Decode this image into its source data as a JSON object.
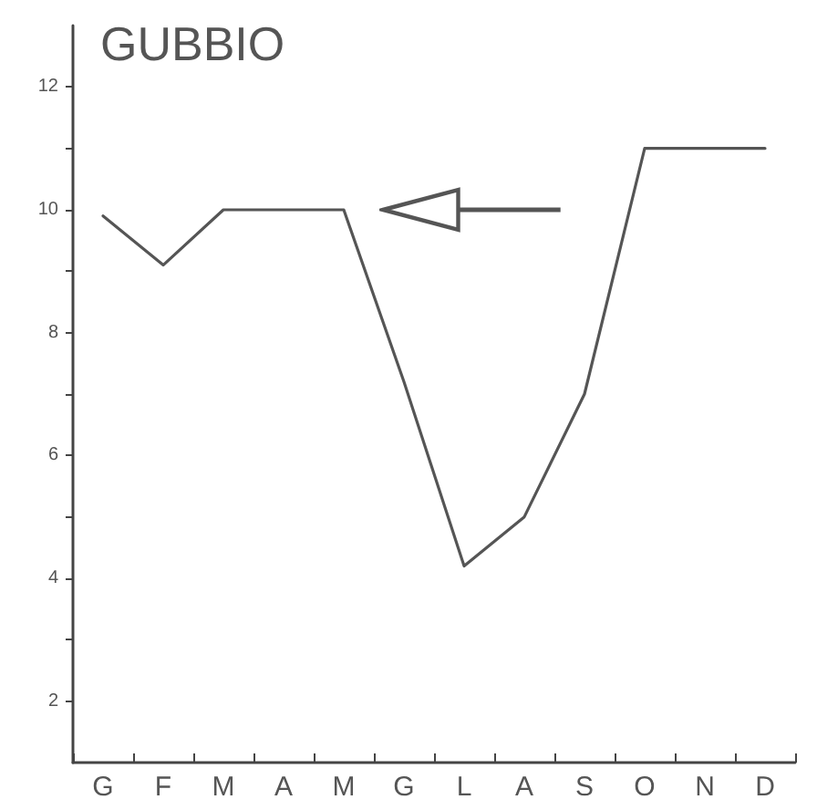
{
  "chart_data": {
    "type": "line",
    "title": "GUBBIO",
    "categories": [
      "G",
      "F",
      "M",
      "A",
      "M",
      "G",
      "L",
      "A",
      "S",
      "O",
      "N",
      "D"
    ],
    "series": [
      {
        "color": "#555555",
        "values": [
          9.9,
          9.1,
          10,
          10,
          10,
          7.2,
          4.2,
          5.0,
          7.0,
          11,
          11,
          11
        ]
      }
    ],
    "ylim": [
      1,
      13
    ],
    "yticks": [
      2,
      {
        "value": 3,
        "label": null
      },
      4,
      {
        "value": 5,
        "label": null
      },
      6,
      {
        "value": 7,
        "label": null
      },
      8,
      {
        "value": 9,
        "label": null
      },
      10,
      {
        "value": 11,
        "label": null
      },
      12
    ],
    "grid": false,
    "marker": "none",
    "line_style": "solid"
  }
}
